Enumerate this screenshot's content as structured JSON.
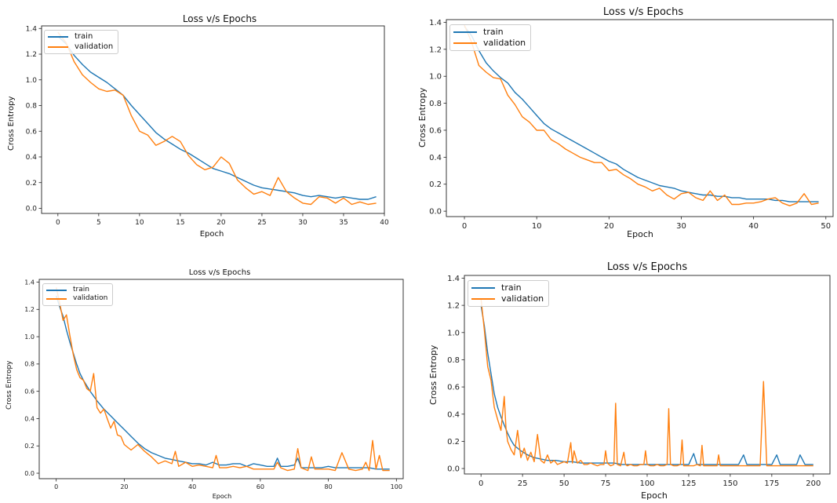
{
  "colors": {
    "train": "#1f77b4",
    "validation": "#ff7f0e"
  },
  "chart_data": [
    {
      "type": "line",
      "title": "Loss v/s Epochs",
      "xlabel": "Epoch",
      "ylabel": "Cross Entropy",
      "xlim": [
        -2,
        40
      ],
      "ylim": [
        -0.04,
        1.42
      ],
      "xticks": [
        0,
        5,
        10,
        15,
        20,
        25,
        30,
        35,
        40
      ],
      "yticks": [
        0.0,
        0.2,
        0.4,
        0.6,
        0.8,
        1.0,
        1.2,
        1.4
      ],
      "ytick_labels": [
        "0.0",
        "0.2",
        "0.4",
        "0.6",
        "0.8",
        "1.0",
        "1.2",
        "1.4"
      ],
      "legend": "upper left",
      "series": [
        {
          "name": "train",
          "x": [
            0,
            1,
            2,
            3,
            4,
            5,
            6,
            7,
            8,
            9,
            10,
            11,
            12,
            13,
            14,
            15,
            16,
            17,
            18,
            19,
            20,
            21,
            22,
            23,
            24,
            25,
            26,
            27,
            28,
            29,
            30,
            31,
            32,
            33,
            34,
            35,
            36,
            37,
            38,
            39
          ],
          "y": [
            1.34,
            1.28,
            1.19,
            1.12,
            1.06,
            1.02,
            0.98,
            0.93,
            0.88,
            0.8,
            0.73,
            0.66,
            0.59,
            0.54,
            0.5,
            0.46,
            0.43,
            0.39,
            0.35,
            0.31,
            0.29,
            0.27,
            0.24,
            0.21,
            0.18,
            0.16,
            0.15,
            0.14,
            0.13,
            0.12,
            0.1,
            0.09,
            0.1,
            0.09,
            0.08,
            0.09,
            0.08,
            0.07,
            0.07,
            0.09
          ]
        },
        {
          "name": "validation",
          "x": [
            0,
            1,
            2,
            3,
            4,
            5,
            6,
            7,
            8,
            9,
            10,
            11,
            12,
            13,
            14,
            15,
            16,
            17,
            18,
            19,
            20,
            21,
            22,
            23,
            24,
            25,
            26,
            27,
            28,
            29,
            30,
            31,
            32,
            33,
            34,
            35,
            36,
            37,
            38,
            39
          ],
          "y": [
            1.37,
            1.29,
            1.14,
            1.04,
            0.98,
            0.93,
            0.91,
            0.92,
            0.88,
            0.72,
            0.6,
            0.57,
            0.49,
            0.52,
            0.56,
            0.52,
            0.41,
            0.34,
            0.3,
            0.32,
            0.4,
            0.35,
            0.22,
            0.16,
            0.11,
            0.13,
            0.1,
            0.24,
            0.13,
            0.08,
            0.04,
            0.03,
            0.09,
            0.08,
            0.04,
            0.08,
            0.03,
            0.05,
            0.03,
            0.04
          ]
        }
      ]
    },
    {
      "type": "line",
      "title": "Loss v/s Epochs",
      "xlabel": "Epoch",
      "ylabel": "Cross Entropy",
      "xlim": [
        -2.5,
        51
      ],
      "ylim": [
        -0.04,
        1.42
      ],
      "xticks": [
        0,
        10,
        20,
        30,
        40,
        50
      ],
      "yticks": [
        0.0,
        0.2,
        0.4,
        0.6,
        0.8,
        1.0,
        1.2,
        1.4
      ],
      "ytick_labels": [
        "0.0",
        "0.2",
        "0.4",
        "0.6",
        "0.8",
        "1.0",
        "1.2",
        "1.4"
      ],
      "legend": "upper left",
      "series": [
        {
          "name": "train",
          "x": [
            0,
            1,
            2,
            3,
            4,
            5,
            6,
            7,
            8,
            9,
            10,
            11,
            12,
            13,
            14,
            15,
            16,
            17,
            18,
            19,
            20,
            21,
            22,
            23,
            24,
            25,
            26,
            27,
            28,
            29,
            30,
            31,
            32,
            33,
            34,
            35,
            36,
            37,
            38,
            39,
            40,
            41,
            42,
            43,
            44,
            45,
            46,
            47,
            48,
            49
          ],
          "y": [
            1.37,
            1.3,
            1.19,
            1.1,
            1.04,
            0.99,
            0.95,
            0.88,
            0.83,
            0.77,
            0.71,
            0.65,
            0.61,
            0.58,
            0.55,
            0.52,
            0.49,
            0.46,
            0.43,
            0.4,
            0.37,
            0.35,
            0.31,
            0.28,
            0.25,
            0.23,
            0.21,
            0.19,
            0.18,
            0.17,
            0.15,
            0.14,
            0.13,
            0.12,
            0.12,
            0.11,
            0.11,
            0.1,
            0.1,
            0.09,
            0.09,
            0.09,
            0.09,
            0.08,
            0.08,
            0.07,
            0.07,
            0.07,
            0.07,
            0.07
          ]
        },
        {
          "name": "validation",
          "x": [
            0,
            1,
            2,
            3,
            4,
            5,
            6,
            7,
            8,
            9,
            10,
            11,
            12,
            13,
            14,
            15,
            16,
            17,
            18,
            19,
            20,
            21,
            22,
            23,
            24,
            25,
            26,
            27,
            28,
            29,
            30,
            31,
            32,
            33,
            34,
            35,
            36,
            37,
            38,
            39,
            40,
            41,
            42,
            43,
            44,
            45,
            46,
            47,
            48,
            49
          ],
          "y": [
            1.38,
            1.25,
            1.08,
            1.03,
            0.99,
            0.98,
            0.86,
            0.79,
            0.7,
            0.66,
            0.6,
            0.6,
            0.53,
            0.5,
            0.46,
            0.43,
            0.4,
            0.38,
            0.36,
            0.36,
            0.3,
            0.31,
            0.27,
            0.24,
            0.2,
            0.18,
            0.15,
            0.17,
            0.12,
            0.09,
            0.13,
            0.14,
            0.1,
            0.08,
            0.15,
            0.08,
            0.12,
            0.05,
            0.05,
            0.06,
            0.06,
            0.07,
            0.09,
            0.1,
            0.06,
            0.04,
            0.06,
            0.13,
            0.05,
            0.06
          ]
        }
      ]
    },
    {
      "type": "line",
      "title": "Loss v/s Epochs",
      "xlabel": "Epoch",
      "ylabel": "Cross Entropy",
      "xlim": [
        -5,
        102
      ],
      "ylim": [
        -0.04,
        1.42
      ],
      "xticks": [
        0,
        20,
        40,
        60,
        80,
        100
      ],
      "yticks": [
        0.0,
        0.2,
        0.4,
        0.6,
        0.8,
        1.0,
        1.2,
        1.4
      ],
      "ytick_labels": [
        "0.0",
        "0.2",
        "0.4",
        "0.6",
        "0.8",
        "1.0",
        "1.2",
        "1.4"
      ],
      "legend": "upper left",
      "series": [
        {
          "name": "train",
          "x": [
            0,
            1,
            2,
            3,
            4,
            5,
            6,
            7,
            8,
            9,
            10,
            12,
            14,
            16,
            18,
            20,
            22,
            24,
            26,
            28,
            30,
            32,
            34,
            36,
            38,
            40,
            42,
            44,
            46,
            48,
            50,
            52,
            54,
            56,
            58,
            60,
            62,
            64,
            65,
            66,
            68,
            70,
            71,
            72,
            74,
            76,
            78,
            80,
            82,
            84,
            86,
            88,
            90,
            92,
            94,
            96,
            98
          ],
          "y": [
            1.3,
            1.22,
            1.15,
            1.05,
            0.96,
            0.88,
            0.8,
            0.73,
            0.68,
            0.64,
            0.6,
            0.53,
            0.47,
            0.42,
            0.37,
            0.32,
            0.27,
            0.22,
            0.18,
            0.15,
            0.13,
            0.11,
            0.1,
            0.09,
            0.08,
            0.07,
            0.07,
            0.06,
            0.08,
            0.06,
            0.06,
            0.07,
            0.07,
            0.05,
            0.07,
            0.06,
            0.05,
            0.05,
            0.11,
            0.05,
            0.05,
            0.06,
            0.11,
            0.04,
            0.04,
            0.04,
            0.04,
            0.05,
            0.04,
            0.04,
            0.04,
            0.04,
            0.04,
            0.04,
            0.03,
            0.03,
            0.03
          ]
        },
        {
          "name": "validation",
          "x": [
            0,
            1,
            2,
            3,
            4,
            5,
            6,
            7,
            8,
            9,
            10,
            11,
            12,
            13,
            14,
            15,
            16,
            17,
            18,
            19,
            20,
            21,
            22,
            24,
            26,
            28,
            30,
            32,
            34,
            35,
            36,
            38,
            40,
            42,
            44,
            46,
            47,
            48,
            50,
            52,
            54,
            56,
            58,
            60,
            62,
            64,
            65,
            66,
            68,
            70,
            71,
            72,
            74,
            75,
            76,
            78,
            80,
            82,
            84,
            86,
            88,
            90,
            91,
            92,
            93,
            94,
            95,
            96,
            97,
            98
          ],
          "y": [
            1.36,
            1.25,
            1.12,
            1.16,
            1.01,
            0.87,
            0.76,
            0.7,
            0.68,
            0.62,
            0.6,
            0.73,
            0.48,
            0.44,
            0.47,
            0.4,
            0.33,
            0.38,
            0.28,
            0.27,
            0.21,
            0.19,
            0.17,
            0.21,
            0.16,
            0.12,
            0.07,
            0.09,
            0.07,
            0.16,
            0.05,
            0.08,
            0.05,
            0.06,
            0.05,
            0.04,
            0.13,
            0.04,
            0.04,
            0.05,
            0.04,
            0.05,
            0.03,
            0.03,
            0.03,
            0.03,
            0.08,
            0.04,
            0.02,
            0.03,
            0.18,
            0.04,
            0.02,
            0.12,
            0.03,
            0.03,
            0.03,
            0.02,
            0.15,
            0.03,
            0.02,
            0.03,
            0.08,
            0.02,
            0.24,
            0.03,
            0.13,
            0.02,
            0.02,
            0.02
          ]
        }
      ]
    },
    {
      "type": "line",
      "title": "Loss v/s Epochs",
      "xlabel": "Epoch",
      "ylabel": "Cross Entropy",
      "xlim": [
        -10,
        210
      ],
      "ylim": [
        -0.04,
        1.42
      ],
      "xticks": [
        0,
        25,
        50,
        75,
        100,
        125,
        150,
        175,
        200
      ],
      "yticks": [
        0.0,
        0.2,
        0.4,
        0.6,
        0.8,
        1.0,
        1.2,
        1.4
      ],
      "ytick_labels": [
        "0.0",
        "0.2",
        "0.4",
        "0.6",
        "0.8",
        "1.0",
        "1.2",
        "1.4"
      ],
      "legend": "upper left",
      "series": [
        {
          "name": "train",
          "x": [
            0,
            2,
            4,
            6,
            8,
            10,
            12,
            14,
            16,
            18,
            20,
            24,
            28,
            32,
            36,
            40,
            45,
            50,
            55,
            60,
            65,
            70,
            75,
            80,
            85,
            90,
            95,
            100,
            105,
            110,
            115,
            120,
            125,
            128,
            130,
            135,
            140,
            145,
            150,
            155,
            158,
            160,
            165,
            170,
            175,
            178,
            180,
            185,
            190,
            192,
            195,
            200
          ],
          "y": [
            1.2,
            1.05,
            0.85,
            0.7,
            0.55,
            0.45,
            0.38,
            0.32,
            0.26,
            0.21,
            0.17,
            0.13,
            0.1,
            0.08,
            0.07,
            0.06,
            0.06,
            0.05,
            0.05,
            0.04,
            0.04,
            0.04,
            0.04,
            0.04,
            0.03,
            0.03,
            0.03,
            0.03,
            0.03,
            0.03,
            0.03,
            0.03,
            0.03,
            0.11,
            0.03,
            0.03,
            0.03,
            0.03,
            0.03,
            0.03,
            0.1,
            0.03,
            0.03,
            0.03,
            0.03,
            0.1,
            0.03,
            0.03,
            0.03,
            0.1,
            0.03,
            0.03
          ]
        },
        {
          "name": "validation",
          "x": [
            0,
            2,
            4,
            6,
            8,
            10,
            12,
            14,
            15,
            16,
            18,
            20,
            22,
            24,
            26,
            28,
            30,
            32,
            34,
            36,
            38,
            40,
            42,
            44,
            46,
            48,
            50,
            52,
            54,
            55,
            56,
            58,
            60,
            62,
            64,
            66,
            68,
            70,
            72,
            74,
            75,
            76,
            78,
            80,
            81,
            82,
            84,
            86,
            87,
            88,
            90,
            92,
            94,
            96,
            98,
            99,
            100,
            102,
            104,
            106,
            108,
            110,
            112,
            113,
            114,
            116,
            118,
            120,
            121,
            122,
            124,
            126,
            128,
            130,
            132,
            133,
            134,
            136,
            138,
            140,
            142,
            143,
            144,
            146,
            148,
            150,
            155,
            160,
            165,
            168,
            170,
            172,
            175,
            180,
            185,
            190,
            195,
            200
          ],
          "y": [
            1.25,
            1.02,
            0.75,
            0.65,
            0.45,
            0.36,
            0.28,
            0.53,
            0.3,
            0.2,
            0.14,
            0.1,
            0.28,
            0.08,
            0.15,
            0.06,
            0.12,
            0.05,
            0.25,
            0.06,
            0.04,
            0.1,
            0.04,
            0.06,
            0.03,
            0.04,
            0.05,
            0.04,
            0.19,
            0.04,
            0.13,
            0.04,
            0.06,
            0.03,
            0.03,
            0.04,
            0.03,
            0.02,
            0.03,
            0.03,
            0.13,
            0.04,
            0.02,
            0.03,
            0.48,
            0.03,
            0.02,
            0.12,
            0.03,
            0.02,
            0.03,
            0.02,
            0.02,
            0.03,
            0.03,
            0.13,
            0.03,
            0.02,
            0.02,
            0.03,
            0.02,
            0.02,
            0.03,
            0.44,
            0.03,
            0.02,
            0.02,
            0.03,
            0.21,
            0.02,
            0.02,
            0.02,
            0.02,
            0.03,
            0.02,
            0.17,
            0.02,
            0.02,
            0.02,
            0.02,
            0.02,
            0.1,
            0.02,
            0.02,
            0.02,
            0.02,
            0.02,
            0.02,
            0.02,
            0.02,
            0.64,
            0.02,
            0.02,
            0.02,
            0.02,
            0.02,
            0.02,
            0.02
          ]
        }
      ]
    }
  ]
}
